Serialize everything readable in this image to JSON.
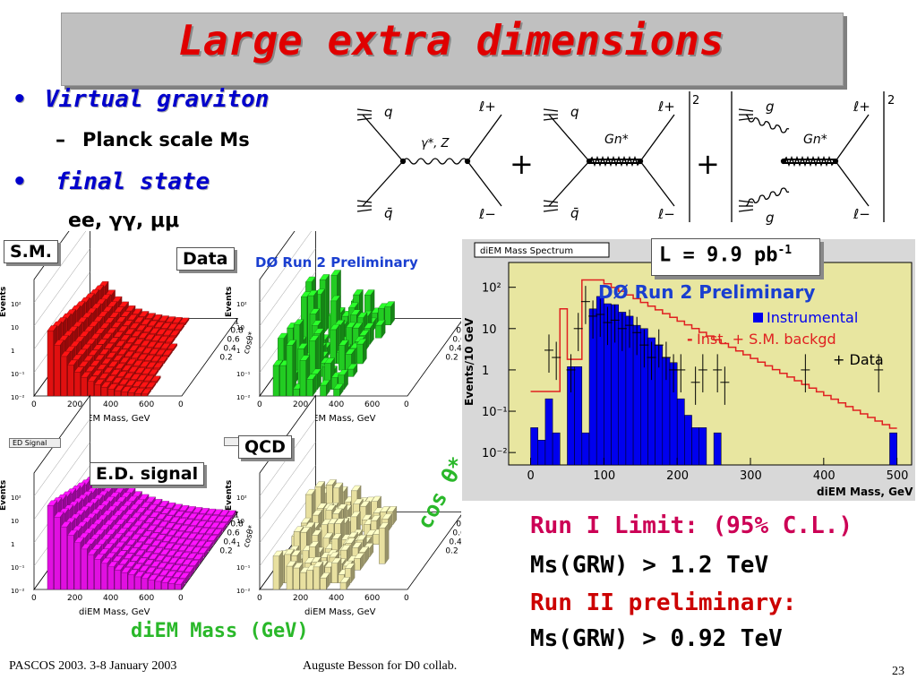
{
  "title": "Large extra dimensions",
  "bullets": {
    "b1": "Virtual graviton",
    "b1_sub": "Planck scale Ms",
    "b2": "final state",
    "b2_sub": "ee, γγ, μμ"
  },
  "feynman": {
    "d1": {
      "q": "q",
      "qbar": "q̄",
      "boson": "γ*, Z",
      "lplus": "ℓ+",
      "lminus": "ℓ−"
    },
    "d2": {
      "q": "q",
      "qbar": "q̄",
      "boson": "Gn*",
      "lplus": "ℓ+",
      "lminus": "ℓ−"
    },
    "d3": {
      "q": "g",
      "qbar": "g",
      "boson": "Gn*",
      "lplus": "ℓ+",
      "lminus": "ℓ−"
    },
    "plus": "+",
    "power": "2"
  },
  "panels": {
    "sm_label": "S.M.",
    "data_label": "Data",
    "preliminary": "DØ Run 2 Preliminary",
    "ed_small": "ED Signal",
    "ed_label": "E.D. signal",
    "qcd_label": "QCD",
    "z_axis": "Events",
    "x_axis": "diEM Mass, GeV",
    "y_axis": "cosθ*",
    "x_ticks": [
      "0",
      "200",
      "400",
      "600"
    ],
    "x_max_tick": "0",
    "y_ticks": [
      "1",
      "0.8",
      "0.6",
      "0.4",
      "0.2"
    ],
    "z_ticks": [
      "10²",
      "10",
      "1",
      "10⁻¹",
      "10⁻²"
    ],
    "cos_big": "cos θ*",
    "diem_big": "diEM Mass (GeV)",
    "colors": {
      "sm": "#e01010",
      "data": "#22cc22",
      "ed": "#e010e0",
      "qcd": "#e8e0a0"
    }
  },
  "spectrum": {
    "tag": "diEM Mass Spectrum",
    "lumi_prefix": "L = 9.9 pb",
    "lumi_exp": "-1",
    "preliminary": "DØ Run 2 Preliminary",
    "legend": {
      "instr": "Instrumental",
      "sm_prefix": "-",
      "sm": "Inst. + S.M. backgd",
      "data": "+ Data"
    },
    "ylabel": "Events/10 GeV",
    "xlabel": "diEM Mass, GeV",
    "x_ticks": [
      "0",
      "100",
      "200",
      "300",
      "400",
      "500"
    ],
    "y_ticks": [
      "10²",
      "10",
      "1",
      "10⁻¹",
      "10⁻²"
    ]
  },
  "results": {
    "r1": "Run I Limit: (95% C.L.)",
    "r2": "Ms(GRW) > 1.2 TeV",
    "r3": "Run II preliminary:",
    "r4": "Ms(GRW) > 0.92 TeV"
  },
  "footer": {
    "left": "PASCOS 2003. 3-8 January 2003",
    "center": "Auguste Besson for D0 collab.",
    "page": "23"
  }
}
